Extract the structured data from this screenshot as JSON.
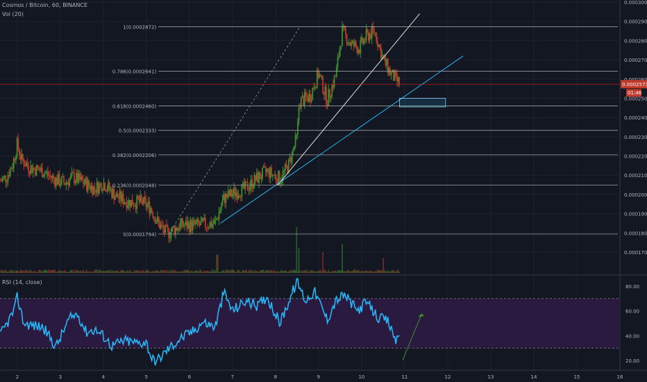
{
  "header": {
    "title": "Cosmos / Bitcoin, 60, BINANCE",
    "volume_label": "Vol (20)",
    "rsi_label": "RSI (14, close)"
  },
  "colors": {
    "background": "#131722",
    "bull": "#26a69a",
    "bull_body": "#3f8f2f",
    "bear": "#c0392b",
    "rsi_line": "#29b6f6",
    "rsi_band": "#2a1a3f",
    "trendline_blue": "#29b6f6",
    "current_price_line": "#b71c1c",
    "price_tag": "#c0392b",
    "fib_line": "#9e9e9e"
  },
  "price_axis": {
    "labels": [
      "0.0003000",
      "0.0002900",
      "0.0002800",
      "0.0002700",
      "0.0002600",
      "0.0002500",
      "0.0002400",
      "0.0002300",
      "0.0002200",
      "0.0002100",
      "0.0002000",
      "0.0001900",
      "0.0001800",
      "0.0001700"
    ],
    "current_price": "0.0002573",
    "countdown": "01:46"
  },
  "rsi_axis": {
    "labels": [
      "80.00",
      "60.00",
      "40.00",
      "20.00"
    ]
  },
  "time_axis": {
    "labels": [
      "2",
      "3",
      "4",
      "5",
      "6",
      "7",
      "8",
      "9",
      "10",
      "11",
      "12",
      "13",
      "14",
      "15",
      "16"
    ]
  },
  "chart_data": {
    "type": "candlestick",
    "ylim": [
      0.00017,
      0.0003
    ],
    "x": [
      1.6,
      16
    ],
    "fib_levels": [
      {
        "label": "1(0.0002872)",
        "ratio": 1,
        "value": 0.0002872
      },
      {
        "label": "0.786(0.0002641)",
        "ratio": 0.786,
        "value": 0.0002641
      },
      {
        "label": "0.618(0.0002460)",
        "ratio": 0.618,
        "value": 0.000246
      },
      {
        "label": "0.5(0.0002333)",
        "ratio": 0.5,
        "value": 0.0002333
      },
      {
        "label": "0.382(0.0002206)",
        "ratio": 0.382,
        "value": 0.0002206
      },
      {
        "label": "0.236(0.0002048)",
        "ratio": 0.236,
        "value": 0.0002048
      },
      {
        "label": "0(0.0001794)",
        "ratio": 0,
        "value": 0.0001794
      }
    ],
    "price_path": [
      [
        1.6,
        0.000207
      ],
      [
        1.75,
        0.000209
      ],
      [
        1.9,
        0.000216
      ],
      [
        2.0,
        0.000226
      ],
      [
        2.1,
        0.000218
      ],
      [
        2.3,
        0.000214
      ],
      [
        2.6,
        0.000212
      ],
      [
        2.85,
        0.000208
      ],
      [
        3.1,
        0.000206
      ],
      [
        3.3,
        0.000209
      ],
      [
        3.55,
        0.000206
      ],
      [
        3.8,
        0.000203
      ],
      [
        4.0,
        0.000206
      ],
      [
        4.3,
        0.000199
      ],
      [
        4.6,
        0.000196
      ],
      [
        4.9,
        0.000196
      ],
      [
        5.1,
        0.000193
      ],
      [
        5.25,
        0.000186
      ],
      [
        5.4,
        0.000181
      ],
      [
        5.5,
        0.00018
      ],
      [
        5.8,
        0.000184
      ],
      [
        6.2,
        0.000184
      ],
      [
        6.6,
        0.000185
      ],
      [
        6.8,
        0.000198
      ],
      [
        7.05,
        0.000201
      ],
      [
        7.3,
        0.000203
      ],
      [
        7.55,
        0.000208
      ],
      [
        7.8,
        0.000212
      ],
      [
        8.1,
        0.000208
      ],
      [
        8.3,
        0.000215
      ],
      [
        8.5,
        0.00023
      ],
      [
        8.55,
        0.000248
      ],
      [
        8.8,
        0.000251
      ],
      [
        9.0,
        0.000263
      ],
      [
        9.2,
        0.000249
      ],
      [
        9.4,
        0.000262
      ],
      [
        9.55,
        0.000285
      ],
      [
        9.75,
        0.000278
      ],
      [
        9.95,
        0.000276
      ],
      [
        10.1,
        0.000282
      ],
      [
        10.3,
        0.000285
      ],
      [
        10.5,
        0.00027
      ],
      [
        10.7,
        0.000262
      ],
      [
        10.9,
        0.000257
      ]
    ],
    "volume_spikes": [
      [
        8.5,
        0.55
      ],
      [
        9.1,
        0.25
      ],
      [
        9.55,
        0.35
      ],
      [
        6.65,
        0.22
      ],
      [
        8.55,
        0.3
      ],
      [
        10.5,
        0.18
      ]
    ],
    "rsi_ylim": [
      15,
      85
    ],
    "rsi_bands": [
      30,
      70
    ],
    "rsi_path": [
      [
        1.6,
        40
      ],
      [
        1.8,
        52
      ],
      [
        1.95,
        62
      ],
      [
        2.0,
        72
      ],
      [
        2.15,
        50
      ],
      [
        2.4,
        48
      ],
      [
        2.6,
        47
      ],
      [
        2.9,
        31
      ],
      [
        3.2,
        53
      ],
      [
        3.4,
        58
      ],
      [
        3.6,
        43
      ],
      [
        3.8,
        45
      ],
      [
        4.0,
        40
      ],
      [
        4.2,
        32
      ],
      [
        4.5,
        36
      ],
      [
        4.8,
        34
      ],
      [
        5.0,
        35
      ],
      [
        5.1,
        24
      ],
      [
        5.2,
        18
      ],
      [
        5.5,
        29
      ],
      [
        5.8,
        38
      ],
      [
        6.1,
        44
      ],
      [
        6.3,
        51
      ],
      [
        6.6,
        47
      ],
      [
        6.8,
        75
      ],
      [
        7.0,
        60
      ],
      [
        7.3,
        68
      ],
      [
        7.6,
        64
      ],
      [
        7.8,
        72
      ],
      [
        8.1,
        50
      ],
      [
        8.3,
        67
      ],
      [
        8.5,
        84
      ],
      [
        8.7,
        68
      ],
      [
        8.9,
        76
      ],
      [
        9.2,
        53
      ],
      [
        9.4,
        68
      ],
      [
        9.6,
        73
      ],
      [
        9.9,
        60
      ],
      [
        10.1,
        67
      ],
      [
        10.4,
        54
      ],
      [
        10.6,
        52
      ],
      [
        10.8,
        36
      ],
      [
        10.9,
        42
      ]
    ]
  }
}
